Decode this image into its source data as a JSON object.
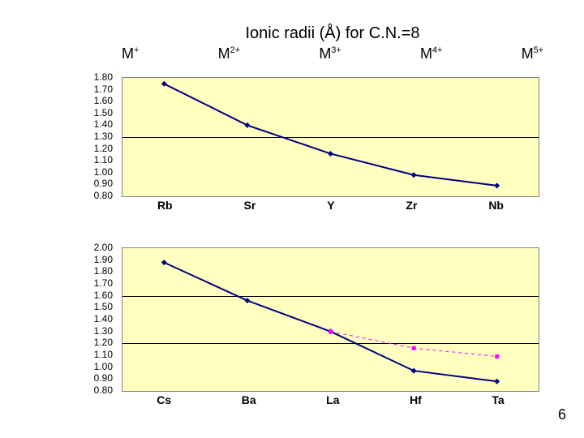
{
  "title": "Ionic radii (Å) for C.N.=8",
  "m_labels": [
    "M+",
    "M2+",
    "M3+",
    "M4+",
    "M5+"
  ],
  "page_number": "6",
  "chart1": {
    "type": "line",
    "background_color": "#ffffc0",
    "border_color": "#808080",
    "grid_color": "#000000",
    "ylim": [
      0.8,
      1.8
    ],
    "ytick_step": 0.1,
    "yticks": [
      "1.80",
      "1.70",
      "1.60",
      "1.50",
      "1.40",
      "1.30",
      "1.20",
      "1.10",
      "1.00",
      "0.90",
      "0.80"
    ],
    "categories": [
      "Rb",
      "Sr",
      "Y",
      "Zr",
      "Nb"
    ],
    "values": [
      1.75,
      1.4,
      1.16,
      0.98,
      0.89
    ],
    "line_color": "#000080",
    "marker_color": "#000080",
    "marker_shape": "diamond",
    "marker_size": 7,
    "line_width": 2,
    "label_fontsize": 12,
    "xlabel_fontsize": 14,
    "xlabel_fontweight": "bold",
    "gridlines_at": [
      1.3
    ]
  },
  "chart2": {
    "type": "line",
    "background_color": "#ffffc0",
    "border_color": "#808080",
    "grid_color": "#000000",
    "ylim": [
      0.8,
      2.0
    ],
    "ytick_step": 0.1,
    "yticks": [
      "2.00",
      "1.90",
      "1.80",
      "1.70",
      "1.60",
      "1.50",
      "1.40",
      "1.30",
      "1.20",
      "1.10",
      "1.00",
      "0.90",
      "0.80"
    ],
    "categories": [
      "Cs",
      "Ba",
      "La",
      "Hf",
      "Ta"
    ],
    "series1": {
      "values": [
        1.88,
        1.56,
        1.3,
        0.97,
        0.88
      ],
      "line_color": "#000080",
      "marker_color": "#000080",
      "marker_shape": "diamond",
      "marker_size": 7,
      "line_width": 2
    },
    "series2": {
      "values": [
        null,
        null,
        1.3,
        1.16,
        1.09
      ],
      "line_color": "#ff00ff",
      "marker_color": "#ff00ff",
      "marker_shape": "square",
      "marker_size": 5,
      "line_width": 1,
      "dash": "4,4"
    },
    "label_fontsize": 12,
    "xlabel_fontsize": 14,
    "xlabel_fontweight": "bold",
    "gridlines_at": [
      1.6,
      1.2
    ]
  }
}
